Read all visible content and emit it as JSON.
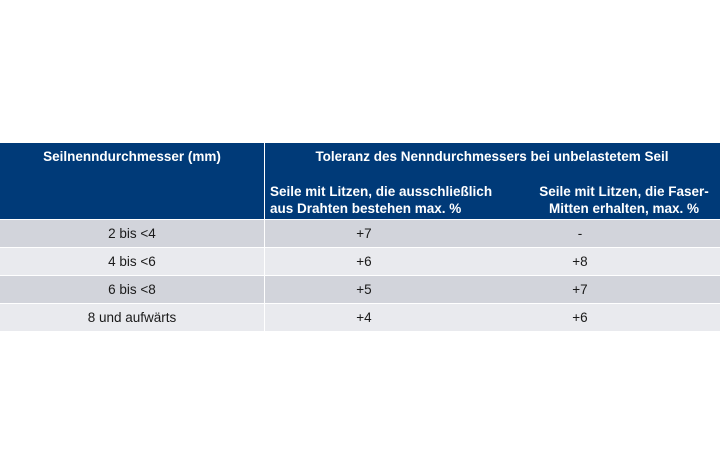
{
  "table": {
    "header": {
      "col1": "Seilnenndurchmesser (mm)",
      "group": "Toleranz des Nenndurchmessers bei unbelastetem Seil",
      "col2_line1": "Seile mit Litzen, die ausschließlich",
      "col2_line2": "aus Drahten bestehen max. %",
      "col3_line1": "Seile mit Litzen, die Faser-",
      "col3_line2": "Mitten erhalten, max. %"
    },
    "rows": [
      {
        "diameter": "2 bis <4",
        "wire": "+7",
        "fiber": "-"
      },
      {
        "diameter": "4 bis <6",
        "wire": "+6",
        "fiber": "+8"
      },
      {
        "diameter": "6 bis <8",
        "wire": "+5",
        "fiber": "+7"
      },
      {
        "diameter": "8 und aufwärts",
        "wire": "+4",
        "fiber": "+6"
      }
    ],
    "colors": {
      "header_bg": "#003a78",
      "row_dark": "#d2d4db",
      "row_light": "#e9eaee"
    }
  }
}
